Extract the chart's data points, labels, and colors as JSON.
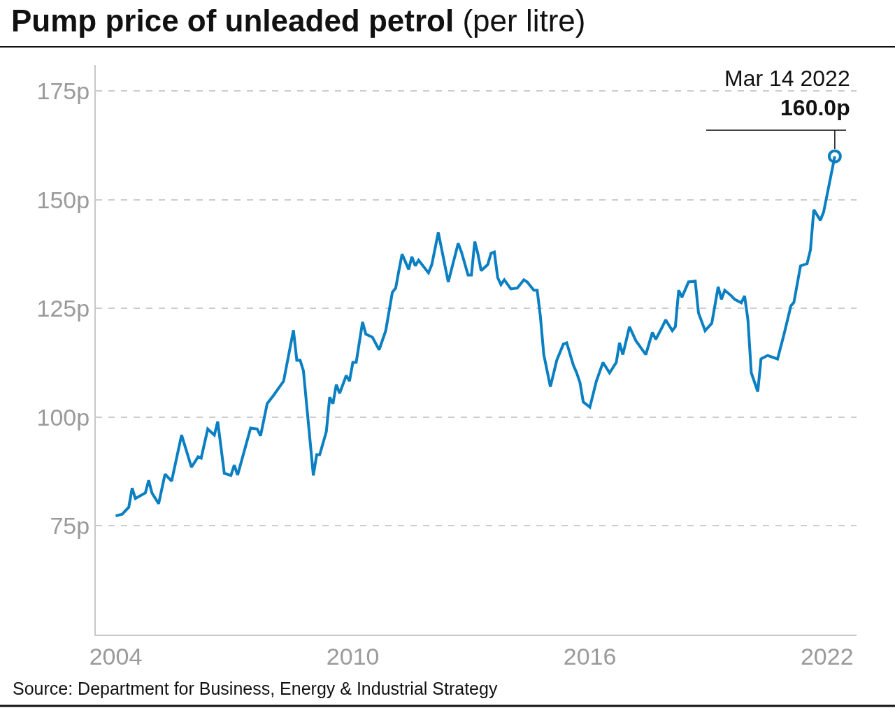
{
  "chart_data": {
    "type": "line",
    "title": "Pump price of unleaded petrol",
    "subtitle": "(per litre)",
    "x": [
      "2004-01",
      "2004-03",
      "2004-05",
      "2004-06",
      "2004-07",
      "2004-10",
      "2004-11",
      "2004-12",
      "2005-02",
      "2005-04",
      "2005-06",
      "2005-09",
      "2005-12",
      "2006-02",
      "2006-03",
      "2006-05",
      "2006-07",
      "2006-08",
      "2006-10",
      "2006-12",
      "2007-01",
      "2007-02",
      "2007-06",
      "2007-08",
      "2007-09",
      "2007-11",
      "2008-01",
      "2008-04",
      "2008-07",
      "2008-08",
      "2008-09",
      "2008-10",
      "2009-01",
      "2009-02",
      "2009-03",
      "2009-05",
      "2009-06",
      "2009-07",
      "2009-08",
      "2009-09",
      "2009-11",
      "2009-12",
      "2010-01",
      "2010-02",
      "2010-04",
      "2010-05",
      "2010-07",
      "2010-09",
      "2010-11",
      "2011-01",
      "2011-02",
      "2011-03",
      "2011-04",
      "2011-06",
      "2011-07",
      "2011-08",
      "2011-09",
      "2011-12",
      "2012-01",
      "2012-03",
      "2012-06",
      "2012-09",
      "2012-10",
      "2012-12",
      "2013-01",
      "2013-02",
      "2013-03",
      "2013-04",
      "2013-06",
      "2013-07",
      "2013-08",
      "2013-09",
      "2013-10",
      "2013-11",
      "2014-01",
      "2014-03",
      "2014-05",
      "2014-06",
      "2014-08",
      "2014-09",
      "2014-10",
      "2014-11",
      "2015-01",
      "2015-03",
      "2015-05",
      "2015-06",
      "2015-08",
      "2015-09",
      "2015-10",
      "2015-11",
      "2016-01",
      "2016-03",
      "2016-05",
      "2016-07",
      "2016-09",
      "2016-10",
      "2016-11",
      "2017-01",
      "2017-03",
      "2017-06",
      "2017-08",
      "2017-09",
      "2017-11",
      "2017-12",
      "2018-02",
      "2018-03",
      "2018-04",
      "2018-05",
      "2018-07",
      "2018-09",
      "2018-10",
      "2018-12",
      "2019-02",
      "2019-04",
      "2019-05",
      "2019-06",
      "2019-08",
      "2019-09",
      "2019-11",
      "2019-12",
      "2020-01",
      "2020-02",
      "2020-04",
      "2020-05",
      "2020-07",
      "2020-10",
      "2020-12",
      "2021-02",
      "2021-03",
      "2021-05",
      "2021-07",
      "2021-08",
      "2021-09",
      "2021-11",
      "2021-12",
      "2022-03-14"
    ],
    "series": [
      {
        "color": "#0a7fc2",
        "values": [
          77.3,
          77.7,
          79.3,
          83.7,
          81.3,
          82.6,
          85.5,
          82.6,
          80.1,
          86.9,
          85.3,
          95.9,
          88.5,
          90.9,
          90.6,
          97.3,
          95.9,
          99.0,
          87.1,
          86.6,
          89.0,
          86.7,
          97.5,
          97.3,
          95.7,
          103.1,
          105.1,
          108.3,
          120.0,
          113.1,
          113.1,
          110.7,
          86.6,
          91.4,
          91.4,
          96.7,
          104.6,
          103.1,
          107.5,
          105.5,
          109.6,
          108.3,
          112.6,
          112.6,
          121.9,
          119.1,
          118.4,
          115.5,
          119.9,
          128.7,
          129.7,
          133.5,
          137.5,
          134.0,
          136.9,
          134.8,
          136.1,
          133.2,
          135.1,
          142.5,
          131.1,
          140.0,
          138.0,
          132.7,
          132.7,
          140.4,
          137.7,
          133.7,
          135.1,
          137.7,
          138.0,
          132.1,
          130.5,
          131.6,
          129.5,
          129.7,
          131.6,
          131.1,
          129.2,
          129.2,
          123.1,
          114.4,
          107.0,
          113.1,
          116.8,
          117.1,
          112.0,
          110.2,
          108.0,
          103.5,
          102.3,
          108.3,
          112.6,
          110.2,
          112.6,
          117.1,
          114.4,
          120.8,
          117.6,
          114.4,
          119.5,
          117.9,
          120.8,
          122.4,
          119.9,
          120.8,
          129.2,
          127.6,
          131.1,
          131.3,
          124.0,
          119.9,
          121.6,
          130.0,
          127.1,
          129.2,
          127.9,
          127.1,
          126.3,
          127.9,
          122.4,
          110.2,
          105.9,
          113.4,
          114.2,
          113.4,
          119.2,
          125.6,
          126.4,
          134.8,
          135.3,
          138.5,
          147.7,
          145.3,
          147.2,
          160.0
        ]
      }
    ],
    "xlim": [
      "2003-07",
      "2022-10"
    ],
    "xticks": [
      "2004",
      "2010",
      "2016",
      "2022"
    ],
    "ylim": [
      50,
      181
    ],
    "yticks": [
      {
        "value": 75,
        "label": "75p"
      },
      {
        "value": 100,
        "label": "100p"
      },
      {
        "value": 125,
        "label": "125p"
      },
      {
        "value": 150,
        "label": "150p"
      },
      {
        "value": 175,
        "label": "175p"
      }
    ],
    "grid": "y",
    "marker": "none",
    "line_style": "solid",
    "annotations": [
      {
        "text": "Mar 14 2022\n160.0p",
        "x": "2022-03-14",
        "y": 160.0
      },
      "Source: Department for Business, Energy & Industrial Strategy"
    ]
  }
}
